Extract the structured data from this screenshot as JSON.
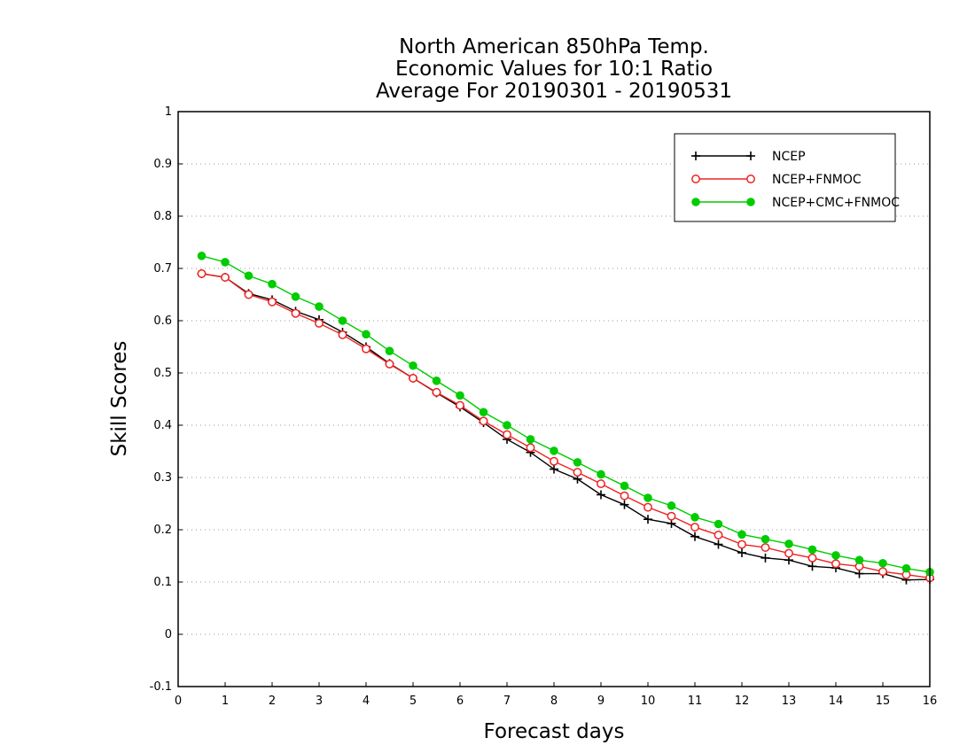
{
  "chart_data": {
    "type": "line",
    "title": [
      "North American 850hPa Temp.",
      "Economic Values for 10:1 Ratio",
      "Average For 20190301 - 20190531"
    ],
    "xlabel": "Forecast days",
    "ylabel": "Skill Scores",
    "xlim": [
      0,
      16
    ],
    "ylim": [
      -0.1,
      1
    ],
    "xticks": [
      0,
      1,
      2,
      3,
      4,
      5,
      6,
      7,
      8,
      9,
      10,
      11,
      12,
      13,
      14,
      15,
      16
    ],
    "yticks": [
      -0.1,
      0,
      0.1,
      0.2,
      0.3,
      0.4,
      0.5,
      0.6,
      0.7,
      0.8,
      0.9,
      1
    ],
    "ytick_labels": [
      "-0.1",
      "0",
      "0.1",
      "0.2",
      "0.3",
      "0.4",
      "0.5",
      "0.6",
      "0.7",
      "0.8",
      "0.9",
      "1"
    ],
    "grid": "horizontal dotted",
    "legend_position": "top-right",
    "x": [
      0.5,
      1,
      1.5,
      2,
      2.5,
      3,
      3.5,
      4,
      4.5,
      5,
      5.5,
      6,
      6.5,
      7,
      7.5,
      8,
      8.5,
      9,
      9.5,
      10,
      10.5,
      11,
      11.5,
      12,
      12.5,
      13,
      13.5,
      14,
      14.5,
      15,
      15.5,
      16
    ],
    "series": [
      {
        "name": "NCEP",
        "color": "#000000",
        "marker": "plus",
        "values": [
          0.69,
          0.683,
          0.652,
          0.64,
          0.618,
          0.602,
          0.578,
          0.55,
          0.518,
          0.49,
          0.462,
          0.435,
          0.405,
          0.373,
          0.348,
          0.316,
          0.297,
          0.267,
          0.248,
          0.22,
          0.212,
          0.187,
          0.172,
          0.156,
          0.146,
          0.142,
          0.13,
          0.127,
          0.116,
          0.116,
          0.104,
          0.105
        ]
      },
      {
        "name": "NCEP+FNMOC",
        "color": "#ee2222",
        "marker": "open-circle",
        "values": [
          0.69,
          0.683,
          0.65,
          0.636,
          0.614,
          0.595,
          0.573,
          0.546,
          0.517,
          0.49,
          0.463,
          0.438,
          0.408,
          0.382,
          0.357,
          0.331,
          0.31,
          0.288,
          0.265,
          0.243,
          0.226,
          0.205,
          0.19,
          0.172,
          0.166,
          0.155,
          0.146,
          0.135,
          0.13,
          0.12,
          0.114,
          0.108
        ]
      },
      {
        "name": "NCEP+CMC+FNMOC",
        "color": "#00cc00",
        "marker": "filled-circle",
        "values": [
          0.724,
          0.712,
          0.686,
          0.67,
          0.646,
          0.627,
          0.6,
          0.574,
          0.542,
          0.514,
          0.485,
          0.457,
          0.425,
          0.4,
          0.373,
          0.351,
          0.329,
          0.306,
          0.284,
          0.261,
          0.246,
          0.224,
          0.211,
          0.191,
          0.182,
          0.173,
          0.162,
          0.151,
          0.142,
          0.136,
          0.126,
          0.119
        ]
      }
    ]
  }
}
